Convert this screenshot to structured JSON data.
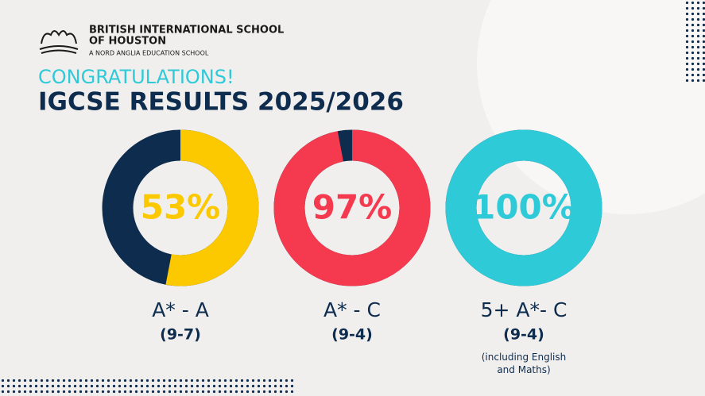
{
  "header": {
    "school_line1": "BRITISH INTERNATIONAL SCHOOL",
    "school_line2": "OF HOUSTON",
    "school_tagline": "A NORD ANGLIA EDUCATION SCHOOL",
    "headline": "CONGRATULATIONS!",
    "title": "IGCSE RESULTS 2025/2026"
  },
  "chart_data": [
    {
      "type": "donut",
      "title": "A* - A",
      "subtitle": "(9-7)",
      "values": [
        53
      ],
      "value_labels": [
        "53%"
      ],
      "ylim": [
        0,
        100
      ],
      "color": "#fcc800",
      "rest_color": "#0d2c4e"
    },
    {
      "type": "donut",
      "title": "A* - C",
      "subtitle": "(9-4)",
      "values": [
        97
      ],
      "value_labels": [
        "97%"
      ],
      "ylim": [
        0,
        100
      ],
      "color": "#f5394f",
      "rest_color": "#0d2c4e"
    },
    {
      "type": "donut",
      "title": "5+ A*- C",
      "subtitle": "(9-4)",
      "note": "(including English and Maths)",
      "values": [
        100
      ],
      "value_labels": [
        "100%"
      ],
      "ylim": [
        0,
        100
      ],
      "color": "#2ecad8",
      "rest_color": "#0d2c4e"
    }
  ]
}
